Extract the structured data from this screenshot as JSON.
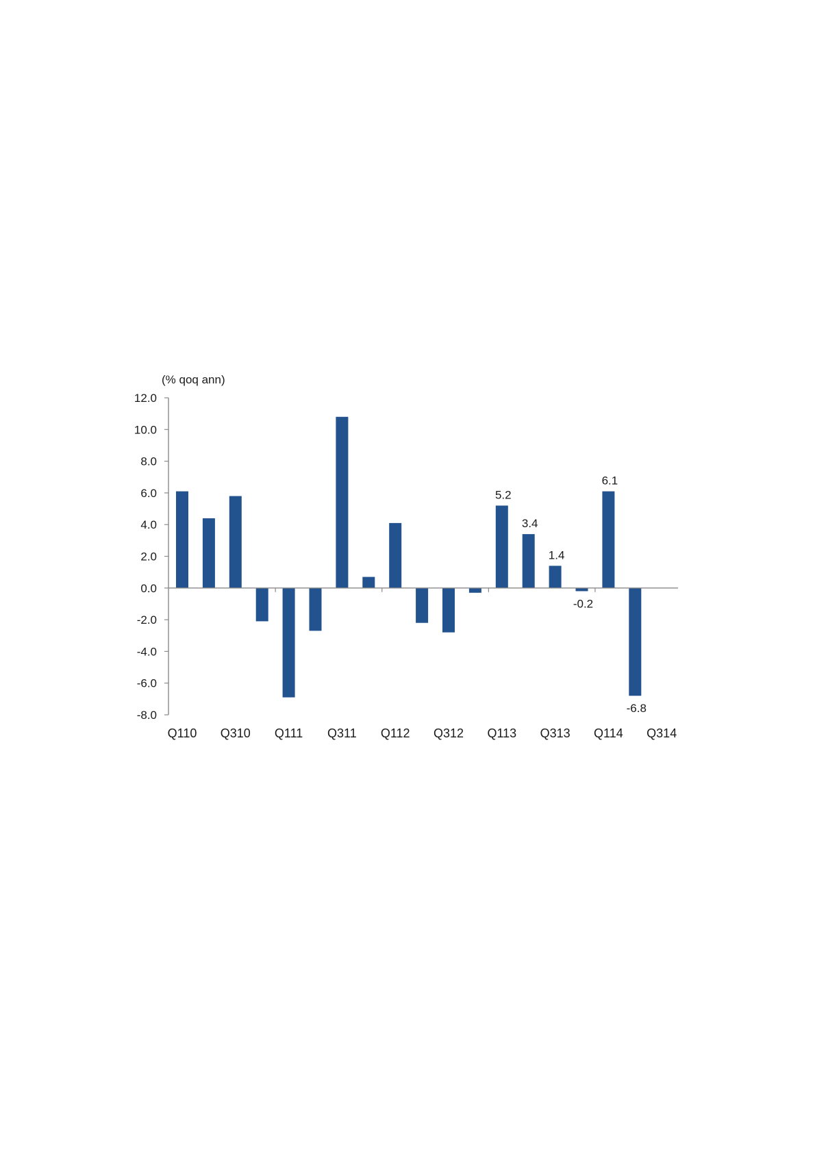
{
  "chart_data": {
    "type": "bar",
    "title": "",
    "ylabel": "(% qoq ann)",
    "xlabel": "",
    "ylim": [
      -8,
      12
    ],
    "yticks": [
      12,
      10,
      8,
      6,
      4,
      2,
      0,
      -2,
      -4,
      -6,
      -8
    ],
    "ytick_labels": [
      "12.0",
      "10.0",
      "8.0",
      "6.0",
      "4.0",
      "2.0",
      "0.0",
      "-2.0",
      "-4.0",
      "-6.0",
      "-8.0"
    ],
    "grid": false,
    "legend": "none",
    "bar_color": "#23538f",
    "categories": [
      "Q110",
      "Q210",
      "Q310",
      "Q410",
      "Q111",
      "Q211",
      "Q311",
      "Q411",
      "Q112",
      "Q212",
      "Q312",
      "Q412",
      "Q113",
      "Q213",
      "Q313",
      "Q413",
      "Q114",
      "Q214",
      "Q314"
    ],
    "x_tick_labels": [
      "Q110",
      "Q310",
      "Q111",
      "Q311",
      "Q112",
      "Q312",
      "Q113",
      "Q313",
      "Q114",
      "Q314"
    ],
    "values": [
      6.1,
      4.4,
      5.8,
      -2.1,
      -6.9,
      -2.7,
      10.8,
      0.7,
      4.1,
      -2.2,
      -2.8,
      -0.3,
      5.2,
      3.4,
      1.4,
      -0.2,
      6.1,
      -6.8,
      null
    ],
    "data_labels": [
      {
        "index": 12,
        "text": "5.2"
      },
      {
        "index": 13,
        "text": "3.4"
      },
      {
        "index": 14,
        "text": "1.4"
      },
      {
        "index": 15,
        "text": "-0.2"
      },
      {
        "index": 16,
        "text": "6.1"
      },
      {
        "index": 17,
        "text": "-6.8"
      }
    ]
  }
}
